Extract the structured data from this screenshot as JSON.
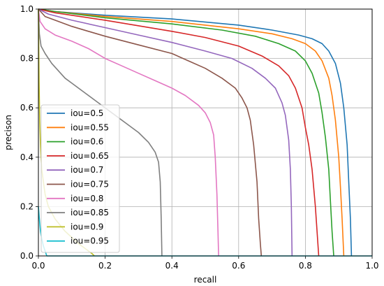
{
  "chart_data": {
    "type": "line",
    "title": "",
    "xlabel": "recall",
    "ylabel": "precison",
    "xlim": [
      0,
      1
    ],
    "ylim": [
      0,
      1
    ],
    "xticks": [
      "0.0",
      "0.2",
      "0.4",
      "0.6",
      "0.8",
      "1.0"
    ],
    "yticks": [
      "0.0",
      "0.2",
      "0.4",
      "0.6",
      "0.8",
      "1.0"
    ],
    "grid": true,
    "legend_position": "lower-left",
    "series": [
      {
        "name": "iou=0.5",
        "color": "#1f77b4",
        "points": [
          [
            0,
            1.0
          ],
          [
            0.05,
            0.99
          ],
          [
            0.2,
            0.975
          ],
          [
            0.4,
            0.96
          ],
          [
            0.6,
            0.935
          ],
          [
            0.7,
            0.915
          ],
          [
            0.78,
            0.895
          ],
          [
            0.82,
            0.88
          ],
          [
            0.85,
            0.86
          ],
          [
            0.87,
            0.83
          ],
          [
            0.89,
            0.78
          ],
          [
            0.905,
            0.7
          ],
          [
            0.915,
            0.6
          ],
          [
            0.925,
            0.45
          ],
          [
            0.93,
            0.3
          ],
          [
            0.935,
            0.15
          ],
          [
            0.938,
            0.0
          ]
        ]
      },
      {
        "name": "iou=0.55",
        "color": "#ff7f0e",
        "points": [
          [
            0,
            1.0
          ],
          [
            0.05,
            0.99
          ],
          [
            0.2,
            0.97
          ],
          [
            0.4,
            0.95
          ],
          [
            0.6,
            0.92
          ],
          [
            0.7,
            0.9
          ],
          [
            0.76,
            0.88
          ],
          [
            0.8,
            0.86
          ],
          [
            0.83,
            0.83
          ],
          [
            0.85,
            0.79
          ],
          [
            0.87,
            0.72
          ],
          [
            0.88,
            0.65
          ],
          [
            0.89,
            0.55
          ],
          [
            0.9,
            0.4
          ],
          [
            0.905,
            0.28
          ],
          [
            0.91,
            0.15
          ],
          [
            0.915,
            0.0
          ]
        ]
      },
      {
        "name": "iou=0.6",
        "color": "#2ca02c",
        "points": [
          [
            0,
            1.0
          ],
          [
            0.05,
            0.99
          ],
          [
            0.2,
            0.965
          ],
          [
            0.4,
            0.94
          ],
          [
            0.55,
            0.915
          ],
          [
            0.65,
            0.89
          ],
          [
            0.72,
            0.86
          ],
          [
            0.77,
            0.83
          ],
          [
            0.8,
            0.79
          ],
          [
            0.82,
            0.74
          ],
          [
            0.84,
            0.66
          ],
          [
            0.85,
            0.58
          ],
          [
            0.86,
            0.48
          ],
          [
            0.87,
            0.35
          ],
          [
            0.875,
            0.22
          ],
          [
            0.88,
            0.1
          ],
          [
            0.885,
            0.0
          ]
        ]
      },
      {
        "name": "iou=0.65",
        "color": "#d62728",
        "points": [
          [
            0,
            1.0
          ],
          [
            0.05,
            0.985
          ],
          [
            0.2,
            0.955
          ],
          [
            0.4,
            0.91
          ],
          [
            0.5,
            0.885
          ],
          [
            0.6,
            0.85
          ],
          [
            0.67,
            0.81
          ],
          [
            0.72,
            0.77
          ],
          [
            0.75,
            0.73
          ],
          [
            0.77,
            0.68
          ],
          [
            0.79,
            0.6
          ],
          [
            0.8,
            0.52
          ],
          [
            0.81,
            0.45
          ],
          [
            0.82,
            0.35
          ],
          [
            0.83,
            0.2
          ],
          [
            0.835,
            0.1
          ],
          [
            0.84,
            0.0
          ]
        ]
      },
      {
        "name": "iou=0.7",
        "color": "#9467bd",
        "points": [
          [
            0,
            1.0
          ],
          [
            0.03,
            0.98
          ],
          [
            0.1,
            0.955
          ],
          [
            0.2,
            0.925
          ],
          [
            0.3,
            0.895
          ],
          [
            0.4,
            0.865
          ],
          [
            0.5,
            0.83
          ],
          [
            0.58,
            0.8
          ],
          [
            0.64,
            0.76
          ],
          [
            0.68,
            0.72
          ],
          [
            0.71,
            0.68
          ],
          [
            0.73,
            0.62
          ],
          [
            0.74,
            0.57
          ],
          [
            0.75,
            0.47
          ],
          [
            0.755,
            0.35
          ],
          [
            0.758,
            0.2
          ],
          [
            0.76,
            0.0
          ]
        ]
      },
      {
        "name": "iou=0.75",
        "color": "#8c564b",
        "points": [
          [
            0,
            1.0
          ],
          [
            0.02,
            0.97
          ],
          [
            0.05,
            0.955
          ],
          [
            0.1,
            0.93
          ],
          [
            0.15,
            0.91
          ],
          [
            0.2,
            0.89
          ],
          [
            0.3,
            0.855
          ],
          [
            0.4,
            0.82
          ],
          [
            0.45,
            0.79
          ],
          [
            0.5,
            0.76
          ],
          [
            0.55,
            0.72
          ],
          [
            0.59,
            0.68
          ],
          [
            0.61,
            0.64
          ],
          [
            0.625,
            0.6
          ],
          [
            0.635,
            0.55
          ],
          [
            0.645,
            0.45
          ],
          [
            0.655,
            0.3
          ],
          [
            0.66,
            0.15
          ],
          [
            0.665,
            0.05
          ],
          [
            0.668,
            0.0
          ]
        ]
      },
      {
        "name": "iou=0.8",
        "color": "#e377c2",
        "points": [
          [
            0,
            1.0
          ],
          [
            0.005,
            0.95
          ],
          [
            0.02,
            0.92
          ],
          [
            0.05,
            0.895
          ],
          [
            0.1,
            0.87
          ],
          [
            0.15,
            0.84
          ],
          [
            0.2,
            0.8
          ],
          [
            0.25,
            0.77
          ],
          [
            0.3,
            0.74
          ],
          [
            0.35,
            0.71
          ],
          [
            0.4,
            0.68
          ],
          [
            0.44,
            0.65
          ],
          [
            0.48,
            0.61
          ],
          [
            0.5,
            0.58
          ],
          [
            0.515,
            0.54
          ],
          [
            0.525,
            0.49
          ],
          [
            0.53,
            0.4
          ],
          [
            0.535,
            0.25
          ],
          [
            0.538,
            0.1
          ],
          [
            0.54,
            0.0
          ]
        ]
      },
      {
        "name": "iou=0.85",
        "color": "#7f7f7f",
        "points": [
          [
            0,
            1.0
          ],
          [
            0.003,
            0.9
          ],
          [
            0.008,
            0.85
          ],
          [
            0.02,
            0.82
          ],
          [
            0.04,
            0.78
          ],
          [
            0.06,
            0.75
          ],
          [
            0.08,
            0.72
          ],
          [
            0.1,
            0.7
          ],
          [
            0.14,
            0.66
          ],
          [
            0.18,
            0.62
          ],
          [
            0.22,
            0.58
          ],
          [
            0.26,
            0.54
          ],
          [
            0.3,
            0.5
          ],
          [
            0.33,
            0.46
          ],
          [
            0.35,
            0.42
          ],
          [
            0.36,
            0.38
          ],
          [
            0.365,
            0.3
          ],
          [
            0.368,
            0.15
          ],
          [
            0.37,
            0.0
          ]
        ]
      },
      {
        "name": "iou=0.9",
        "color": "#bcbd22",
        "points": [
          [
            0,
            1.0
          ],
          [
            0.001,
            0.85
          ],
          [
            0.002,
            0.7
          ],
          [
            0.004,
            0.55
          ],
          [
            0.006,
            0.45
          ],
          [
            0.008,
            0.4
          ],
          [
            0.01,
            0.35
          ],
          [
            0.015,
            0.3
          ],
          [
            0.02,
            0.25
          ],
          [
            0.03,
            0.2
          ],
          [
            0.05,
            0.15
          ],
          [
            0.08,
            0.1
          ],
          [
            0.12,
            0.05
          ],
          [
            0.16,
            0.01
          ],
          [
            0.168,
            0.0
          ]
        ]
      },
      {
        "name": "iou=0.95",
        "color": "#17becf",
        "points": [
          [
            0,
            0.2
          ],
          [
            0.003,
            0.15
          ],
          [
            0.006,
            0.1
          ],
          [
            0.01,
            0.07
          ],
          [
            0.015,
            0.04
          ],
          [
            0.02,
            0.02
          ],
          [
            0.025,
            0.0
          ],
          [
            1.0,
            0.0
          ]
        ]
      }
    ]
  }
}
